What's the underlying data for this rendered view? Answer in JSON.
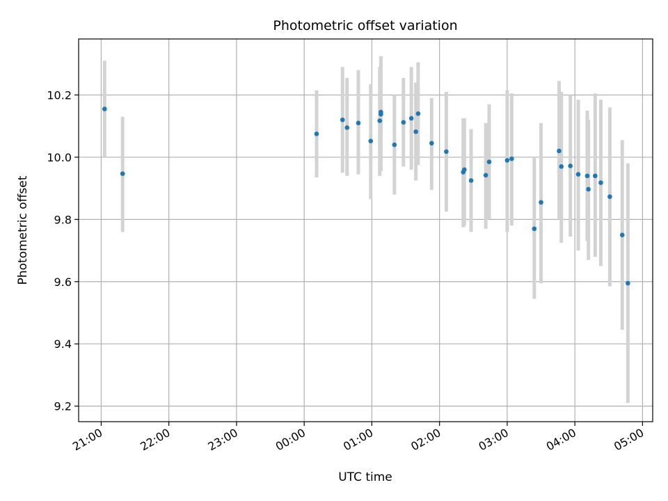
{
  "chart_data": {
    "type": "scatter",
    "title": "Photometric offset variation",
    "xlabel": "UTC time",
    "ylabel": "Photometric offset",
    "grid": true,
    "legend": "none",
    "xlim": [
      "20:40",
      "05:09"
    ],
    "ylim": [
      9.15,
      10.38
    ],
    "xticks": [
      "21:00",
      "22:00",
      "23:00",
      "00:00",
      "01:00",
      "02:00",
      "03:00",
      "04:00",
      "05:00"
    ],
    "yticks": [
      "9.2",
      "9.4",
      "9.6",
      "9.8",
      "10.0",
      "10.2"
    ],
    "point_color": "#1f77b4",
    "errorbar_color": "#d3d3d3",
    "series": [
      {
        "points": [
          {
            "x": "21:03",
            "y": 10.155,
            "lo": 10.0,
            "hi": 10.31
          },
          {
            "x": "21:19",
            "y": 9.947,
            "lo": 9.76,
            "hi": 10.13
          },
          {
            "x": "00:11",
            "y": 10.075,
            "lo": 9.935,
            "hi": 10.215
          },
          {
            "x": "00:34",
            "y": 10.12,
            "lo": 9.95,
            "hi": 10.29
          },
          {
            "x": "00:38",
            "y": 10.095,
            "lo": 9.94,
            "hi": 10.255
          },
          {
            "x": "00:48",
            "y": 10.11,
            "lo": 9.945,
            "hi": 10.28
          },
          {
            "x": "00:59",
            "y": 10.052,
            "lo": 9.865,
            "hi": 10.235
          },
          {
            "x": "01:07",
            "y": 10.117,
            "lo": 9.94,
            "hi": 10.29
          },
          {
            "x": "01:08",
            "y": 10.145,
            "lo": 9.96,
            "hi": 10.325
          },
          {
            "x": "01:08",
            "y": 10.138,
            "lo": 9.955,
            "hi": 10.32
          },
          {
            "x": "01:20",
            "y": 10.04,
            "lo": 9.88,
            "hi": 10.2
          },
          {
            "x": "01:28",
            "y": 10.112,
            "lo": 9.97,
            "hi": 10.255
          },
          {
            "x": "01:35",
            "y": 10.125,
            "lo": 9.96,
            "hi": 10.29
          },
          {
            "x": "01:39",
            "y": 10.082,
            "lo": 9.925,
            "hi": 10.24
          },
          {
            "x": "01:41",
            "y": 10.14,
            "lo": 9.975,
            "hi": 10.305
          },
          {
            "x": "01:53",
            "y": 10.045,
            "lo": 9.895,
            "hi": 10.19
          },
          {
            "x": "02:06",
            "y": 10.018,
            "lo": 9.825,
            "hi": 10.21
          },
          {
            "x": "02:21",
            "y": 9.952,
            "lo": 9.775,
            "hi": 10.125
          },
          {
            "x": "02:22",
            "y": 9.96,
            "lo": 9.78,
            "hi": 10.125
          },
          {
            "x": "02:28",
            "y": 9.925,
            "lo": 9.76,
            "hi": 10.09
          },
          {
            "x": "02:41",
            "y": 9.942,
            "lo": 9.77,
            "hi": 10.11
          },
          {
            "x": "02:44",
            "y": 9.985,
            "lo": 9.8,
            "hi": 10.17
          },
          {
            "x": "03:00",
            "y": 9.99,
            "lo": 9.76,
            "hi": 10.215
          },
          {
            "x": "03:04",
            "y": 9.995,
            "lo": 9.78,
            "hi": 10.205
          },
          {
            "x": "03:24",
            "y": 9.77,
            "lo": 9.545,
            "hi": 10.0
          },
          {
            "x": "03:30",
            "y": 9.855,
            "lo": 9.595,
            "hi": 10.11
          },
          {
            "x": "03:46",
            "y": 10.02,
            "lo": 9.8,
            "hi": 10.245
          },
          {
            "x": "03:48",
            "y": 9.97,
            "lo": 9.725,
            "hi": 10.21
          },
          {
            "x": "03:56",
            "y": 9.972,
            "lo": 9.745,
            "hi": 10.2
          },
          {
            "x": "04:03",
            "y": 9.945,
            "lo": 9.7,
            "hi": 10.185
          },
          {
            "x": "04:11",
            "y": 9.94,
            "lo": 9.73,
            "hi": 10.15
          },
          {
            "x": "04:12",
            "y": 9.897,
            "lo": 9.67,
            "hi": 10.12
          },
          {
            "x": "04:18",
            "y": 9.94,
            "lo": 9.68,
            "hi": 10.205
          },
          {
            "x": "04:23",
            "y": 9.918,
            "lo": 9.65,
            "hi": 10.185
          },
          {
            "x": "04:31",
            "y": 9.873,
            "lo": 9.585,
            "hi": 10.16
          },
          {
            "x": "04:42",
            "y": 9.75,
            "lo": 9.445,
            "hi": 10.055
          },
          {
            "x": "04:47",
            "y": 9.595,
            "lo": 9.21,
            "hi": 9.98
          }
        ]
      }
    ]
  }
}
